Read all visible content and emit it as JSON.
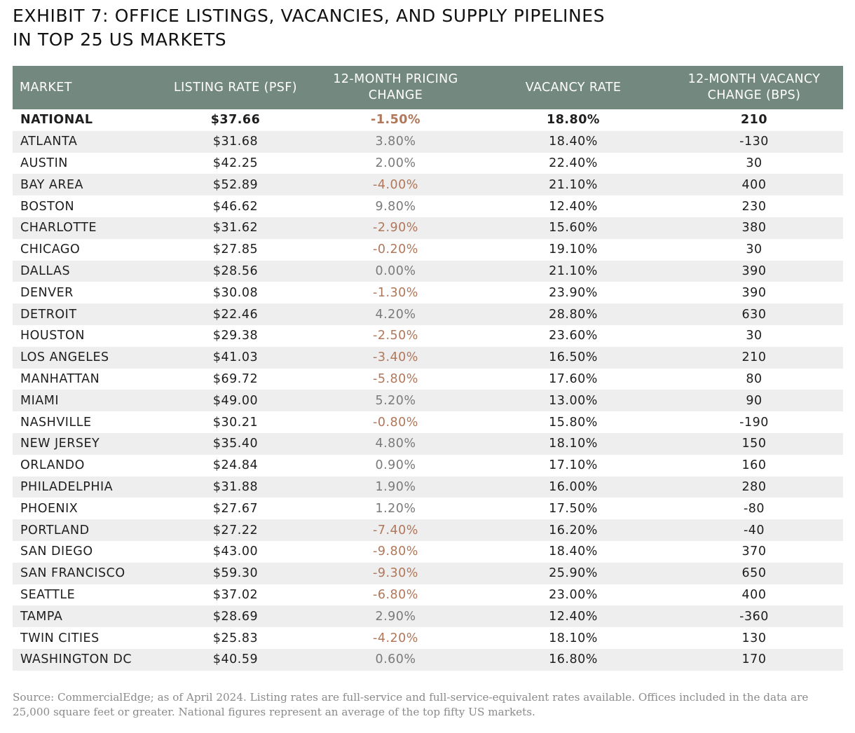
{
  "title": {
    "line1": "EXHIBIT 7: OFFICE LISTINGS, VACANCIES, AND SUPPLY PIPELINES",
    "line2": "IN TOP 25 US MARKETS"
  },
  "columns": {
    "market": "MARKET",
    "listing_rate": "LISTING RATE (PSF)",
    "pricing_change_1": "12-MONTH PRICING",
    "pricing_change_2": "CHANGE",
    "vacancy_rate": "VACANCY RATE",
    "vacancy_change_1": "12-MONTH VACANCY",
    "vacancy_change_2": "CHANGE (BPS)"
  },
  "colors": {
    "header_bg": "#73897f",
    "negative_change": "#b0775a",
    "positive_change": "#7a7a7a",
    "stripe": "#eeeeee"
  },
  "rows": [
    {
      "market": "NATIONAL",
      "listing_rate": "$37.66",
      "pricing_change": "-1.50%",
      "vacancy_rate": "18.80%",
      "vacancy_change": "210"
    },
    {
      "market": "ATLANTA",
      "listing_rate": "$31.68",
      "pricing_change": "3.80%",
      "vacancy_rate": "18.40%",
      "vacancy_change": "-130"
    },
    {
      "market": "AUSTIN",
      "listing_rate": "$42.25",
      "pricing_change": "2.00%",
      "vacancy_rate": "22.40%",
      "vacancy_change": "30"
    },
    {
      "market": "BAY AREA",
      "listing_rate": "$52.89",
      "pricing_change": "-4.00%",
      "vacancy_rate": "21.10%",
      "vacancy_change": "400"
    },
    {
      "market": "BOSTON",
      "listing_rate": "$46.62",
      "pricing_change": "9.80%",
      "vacancy_rate": "12.40%",
      "vacancy_change": "230"
    },
    {
      "market": "CHARLOTTE",
      "listing_rate": "$31.62",
      "pricing_change": "-2.90%",
      "vacancy_rate": "15.60%",
      "vacancy_change": "380"
    },
    {
      "market": "CHICAGO",
      "listing_rate": "$27.85",
      "pricing_change": "-0.20%",
      "vacancy_rate": "19.10%",
      "vacancy_change": "30"
    },
    {
      "market": "DALLAS",
      "listing_rate": "$28.56",
      "pricing_change": "0.00%",
      "vacancy_rate": "21.10%",
      "vacancy_change": "390"
    },
    {
      "market": "DENVER",
      "listing_rate": "$30.08",
      "pricing_change": "-1.30%",
      "vacancy_rate": "23.90%",
      "vacancy_change": "390"
    },
    {
      "market": "DETROIT",
      "listing_rate": "$22.46",
      "pricing_change": "4.20%",
      "vacancy_rate": "28.80%",
      "vacancy_change": "630"
    },
    {
      "market": "HOUSTON",
      "listing_rate": "$29.38",
      "pricing_change": "-2.50%",
      "vacancy_rate": "23.60%",
      "vacancy_change": "30"
    },
    {
      "market": "LOS ANGELES",
      "listing_rate": "$41.03",
      "pricing_change": "-3.40%",
      "vacancy_rate": "16.50%",
      "vacancy_change": "210"
    },
    {
      "market": "MANHATTAN",
      "listing_rate": "$69.72",
      "pricing_change": "-5.80%",
      "vacancy_rate": "17.60%",
      "vacancy_change": "80"
    },
    {
      "market": "MIAMI",
      "listing_rate": "$49.00",
      "pricing_change": "5.20%",
      "vacancy_rate": "13.00%",
      "vacancy_change": "90"
    },
    {
      "market": "NASHVILLE",
      "listing_rate": "$30.21",
      "pricing_change": "-0.80%",
      "vacancy_rate": "15.80%",
      "vacancy_change": "-190"
    },
    {
      "market": "NEW JERSEY",
      "listing_rate": "$35.40",
      "pricing_change": "4.80%",
      "vacancy_rate": "18.10%",
      "vacancy_change": "150"
    },
    {
      "market": "ORLANDO",
      "listing_rate": "$24.84",
      "pricing_change": "0.90%",
      "vacancy_rate": "17.10%",
      "vacancy_change": "160"
    },
    {
      "market": "PHILADELPHIA",
      "listing_rate": "$31.88",
      "pricing_change": "1.90%",
      "vacancy_rate": "16.00%",
      "vacancy_change": "280"
    },
    {
      "market": "PHOENIX",
      "listing_rate": "$27.67",
      "pricing_change": "1.20%",
      "vacancy_rate": "17.50%",
      "vacancy_change": "-80"
    },
    {
      "market": "PORTLAND",
      "listing_rate": "$27.22",
      "pricing_change": "-7.40%",
      "vacancy_rate": "16.20%",
      "vacancy_change": "-40"
    },
    {
      "market": "SAN DIEGO",
      "listing_rate": "$43.00",
      "pricing_change": "-9.80%",
      "vacancy_rate": "18.40%",
      "vacancy_change": "370"
    },
    {
      "market": "SAN FRANCISCO",
      "listing_rate": "$59.30",
      "pricing_change": "-9.30%",
      "vacancy_rate": "25.90%",
      "vacancy_change": "650"
    },
    {
      "market": "SEATTLE",
      "listing_rate": "$37.02",
      "pricing_change": "-6.80%",
      "vacancy_rate": "23.00%",
      "vacancy_change": "400"
    },
    {
      "market": "TAMPA",
      "listing_rate": "$28.69",
      "pricing_change": "2.90%",
      "vacancy_rate": "12.40%",
      "vacancy_change": "-360"
    },
    {
      "market": "TWIN CITIES",
      "listing_rate": "$25.83",
      "pricing_change": "-4.20%",
      "vacancy_rate": "18.10%",
      "vacancy_change": "130"
    },
    {
      "market": "WASHINGTON DC",
      "listing_rate": "$40.59",
      "pricing_change": "0.60%",
      "vacancy_rate": "16.80%",
      "vacancy_change": "170"
    }
  ],
  "source": "Source: CommercialEdge; as of April 2024. Listing rates are full-service and full-service-equivalent rates available. Offices included in the data are 25,000 square feet or greater. National figures represent an average of the top fifty US markets."
}
